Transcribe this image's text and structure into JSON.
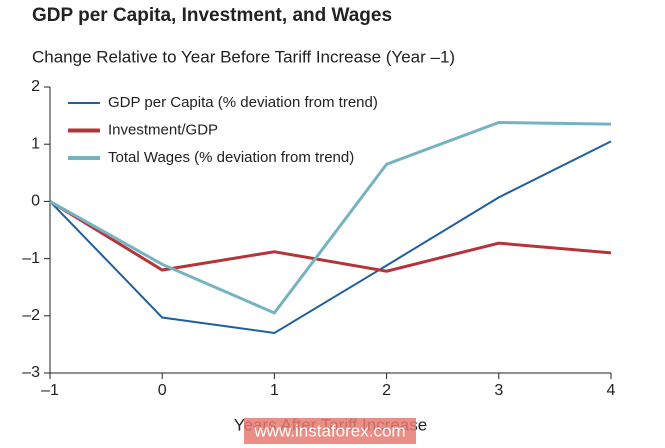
{
  "chart_data": {
    "type": "line",
    "title": "GDP per Capita, Investment, and Wages",
    "subtitle": "Change Relative to Year Before Tariff Increase (Year –1)",
    "x_label": "Years After Tariff Increase",
    "watermark": "www.instaforex.com",
    "x": [
      -1,
      0,
      1,
      2,
      3,
      4
    ],
    "series": [
      {
        "name": "GDP per Capita (% deviation from trend)",
        "color": "#1f5f9e",
        "values": [
          0,
          -2.03,
          -2.3,
          -1.12,
          0.07,
          1.05
        ]
      },
      {
        "name": "Investment/GDP",
        "color": "#b5343a",
        "values": [
          0,
          -1.2,
          -0.88,
          -1.22,
          -0.73,
          -0.9
        ]
      },
      {
        "name": "Total Wages (% deviation from trend)",
        "color": "#74b3bf",
        "values": [
          0,
          -1.1,
          -1.95,
          0.65,
          1.38,
          1.35
        ]
      }
    ],
    "xlim": [
      -1,
      4
    ],
    "xticks": [
      {
        "value": -1,
        "label": "–1"
      },
      0,
      1,
      2,
      3,
      4
    ],
    "ylim": [
      -3,
      2
    ],
    "yticks": [
      2,
      1,
      0,
      {
        "value": -1,
        "label": "–1"
      },
      {
        "value": -2,
        "label": "–2"
      },
      {
        "value": -3,
        "label": "–3"
      }
    ],
    "grid": false,
    "legend": "upper left"
  }
}
